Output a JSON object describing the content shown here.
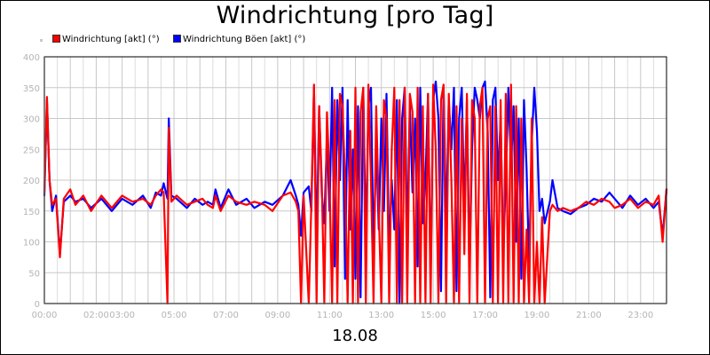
{
  "chart_data": {
    "type": "line",
    "title": "Windrichtung [pro Tag]",
    "xlabel": "18.08",
    "ylabel": "",
    "ylim": [
      0,
      400
    ],
    "yticks": [
      0,
      50,
      100,
      150,
      200,
      250,
      300,
      350,
      400
    ],
    "xlim_hours": [
      0,
      24
    ],
    "xticks": [
      {
        "h": 0,
        "label": "00:00"
      },
      {
        "h": 2,
        "label": "02:00"
      },
      {
        "h": 3,
        "label": "03:00"
      },
      {
        "h": 5,
        "label": "05:00"
      },
      {
        "h": 7,
        "label": "07:00"
      },
      {
        "h": 9,
        "label": "09:00"
      },
      {
        "h": 11,
        "label": "11:00"
      },
      {
        "h": 13,
        "label": "13:00"
      },
      {
        "h": 15,
        "label": "15:00"
      },
      {
        "h": 17,
        "label": "17:00"
      },
      {
        "h": 19,
        "label": "19:00"
      },
      {
        "h": 21,
        "label": "21:00"
      },
      {
        "h": 23,
        "label": "23:00"
      }
    ],
    "grid": true,
    "legend_position": "top-left",
    "series": [
      {
        "name": "Windrichtung Böen [akt] (°)",
        "color": "#0000ff",
        "points": [
          [
            0,
            175
          ],
          [
            0.1,
            330
          ],
          [
            0.2,
            200
          ],
          [
            0.3,
            150
          ],
          [
            0.45,
            175
          ],
          [
            0.6,
            80
          ],
          [
            0.75,
            165
          ],
          [
            1,
            175
          ],
          [
            1.2,
            165
          ],
          [
            1.5,
            170
          ],
          [
            1.8,
            155
          ],
          [
            2.2,
            170
          ],
          [
            2.6,
            150
          ],
          [
            3.0,
            170
          ],
          [
            3.4,
            160
          ],
          [
            3.8,
            175
          ],
          [
            4.1,
            155
          ],
          [
            4.3,
            180
          ],
          [
            4.5,
            175
          ],
          [
            4.6,
            195
          ],
          [
            4.75,
            170
          ],
          [
            4.8,
            300
          ],
          [
            4.9,
            175
          ],
          [
            5.1,
            170
          ],
          [
            5.5,
            155
          ],
          [
            5.8,
            170
          ],
          [
            6.1,
            160
          ],
          [
            6.3,
            165
          ],
          [
            6.5,
            160
          ],
          [
            6.6,
            185
          ],
          [
            6.8,
            155
          ],
          [
            7.1,
            185
          ],
          [
            7.4,
            160
          ],
          [
            7.8,
            170
          ],
          [
            8.1,
            155
          ],
          [
            8.5,
            165
          ],
          [
            8.8,
            160
          ],
          [
            9.2,
            175
          ],
          [
            9.5,
            200
          ],
          [
            9.7,
            175
          ],
          [
            9.8,
            160
          ],
          [
            9.9,
            110
          ],
          [
            10.0,
            180
          ],
          [
            10.2,
            190
          ],
          [
            10.3,
            150
          ],
          [
            10.4,
            350
          ],
          [
            10.5,
            85
          ],
          [
            10.6,
            320
          ],
          [
            10.7,
            180
          ],
          [
            10.8,
            130
          ],
          [
            10.9,
            270
          ],
          [
            11.0,
            150
          ],
          [
            11.1,
            350
          ],
          [
            11.2,
            60
          ],
          [
            11.3,
            330
          ],
          [
            11.4,
            200
          ],
          [
            11.5,
            350
          ],
          [
            11.6,
            40
          ],
          [
            11.7,
            330
          ],
          [
            11.8,
            120
          ],
          [
            11.9,
            250
          ],
          [
            12.0,
            40
          ],
          [
            12.1,
            320
          ],
          [
            12.2,
            10
          ],
          [
            12.3,
            350
          ],
          [
            12.4,
            100
          ],
          [
            12.5,
            320
          ],
          [
            12.6,
            350
          ],
          [
            12.7,
            80
          ],
          [
            12.8,
            260
          ],
          [
            12.9,
            120
          ],
          [
            13.0,
            300
          ],
          [
            13.1,
            150
          ],
          [
            13.2,
            340
          ],
          [
            13.3,
            80
          ],
          [
            13.4,
            200
          ],
          [
            13.5,
            120
          ],
          [
            13.6,
            330
          ],
          [
            13.7,
            0
          ],
          [
            13.8,
            300
          ],
          [
            13.9,
            350
          ],
          [
            14.0,
            100
          ],
          [
            14.1,
            320
          ],
          [
            14.2,
            180
          ],
          [
            14.3,
            300
          ],
          [
            14.4,
            60
          ],
          [
            14.5,
            350
          ],
          [
            14.6,
            130
          ],
          [
            14.7,
            200
          ],
          [
            14.8,
            340
          ],
          [
            14.9,
            40
          ],
          [
            15.0,
            330
          ],
          [
            15.1,
            360
          ],
          [
            15.2,
            300
          ],
          [
            15.3,
            20
          ],
          [
            15.4,
            350
          ],
          [
            15.5,
            120
          ],
          [
            15.6,
            330
          ],
          [
            15.7,
            250
          ],
          [
            15.8,
            350
          ],
          [
            15.9,
            20
          ],
          [
            16.0,
            300
          ],
          [
            16.1,
            350
          ],
          [
            16.2,
            150
          ],
          [
            16.3,
            330
          ],
          [
            16.4,
            60
          ],
          [
            16.5,
            250
          ],
          [
            16.6,
            350
          ],
          [
            16.7,
            330
          ],
          [
            16.8,
            300
          ],
          [
            16.9,
            350
          ],
          [
            17.0,
            360
          ],
          [
            17.1,
            280
          ],
          [
            17.2,
            10
          ],
          [
            17.3,
            330
          ],
          [
            17.4,
            350
          ],
          [
            17.5,
            200
          ],
          [
            17.6,
            300
          ],
          [
            17.7,
            80
          ],
          [
            17.8,
            200
          ],
          [
            17.9,
            350
          ],
          [
            18.0,
            220
          ],
          [
            18.1,
            320
          ],
          [
            18.2,
            100
          ],
          [
            18.3,
            300
          ],
          [
            18.4,
            40
          ],
          [
            18.5,
            330
          ],
          [
            18.6,
            220
          ],
          [
            18.7,
            60
          ],
          [
            18.8,
            260
          ],
          [
            18.9,
            350
          ],
          [
            19.0,
            280
          ],
          [
            19.1,
            150
          ],
          [
            19.2,
            170
          ],
          [
            19.3,
            130
          ],
          [
            19.5,
            165
          ],
          [
            19.6,
            200
          ],
          [
            19.8,
            155
          ],
          [
            20.0,
            150
          ],
          [
            20.3,
            145
          ],
          [
            20.6,
            155
          ],
          [
            20.9,
            160
          ],
          [
            21.2,
            170
          ],
          [
            21.5,
            165
          ],
          [
            21.8,
            180
          ],
          [
            22.0,
            170
          ],
          [
            22.3,
            155
          ],
          [
            22.6,
            175
          ],
          [
            22.9,
            160
          ],
          [
            23.2,
            170
          ],
          [
            23.5,
            155
          ],
          [
            23.7,
            165
          ],
          [
            23.85,
            110
          ],
          [
            24.0,
            185
          ]
        ]
      },
      {
        "name": "Windrichtung [akt] (°)",
        "color": "#ff0000",
        "points": [
          [
            0,
            180
          ],
          [
            0.1,
            335
          ],
          [
            0.2,
            200
          ],
          [
            0.3,
            160
          ],
          [
            0.45,
            170
          ],
          [
            0.6,
            75
          ],
          [
            0.75,
            170
          ],
          [
            1,
            185
          ],
          [
            1.2,
            160
          ],
          [
            1.5,
            175
          ],
          [
            1.8,
            150
          ],
          [
            2.2,
            175
          ],
          [
            2.6,
            155
          ],
          [
            3.0,
            175
          ],
          [
            3.4,
            165
          ],
          [
            3.8,
            170
          ],
          [
            4.1,
            160
          ],
          [
            4.3,
            175
          ],
          [
            4.5,
            185
          ],
          [
            4.6,
            180
          ],
          [
            4.75,
            0
          ],
          [
            4.8,
            285
          ],
          [
            4.9,
            165
          ],
          [
            5.1,
            175
          ],
          [
            5.5,
            160
          ],
          [
            5.8,
            165
          ],
          [
            6.1,
            170
          ],
          [
            6.3,
            160
          ],
          [
            6.5,
            155
          ],
          [
            6.6,
            175
          ],
          [
            6.8,
            150
          ],
          [
            7.1,
            175
          ],
          [
            7.4,
            165
          ],
          [
            7.8,
            160
          ],
          [
            8.1,
            165
          ],
          [
            8.5,
            160
          ],
          [
            8.8,
            150
          ],
          [
            9.2,
            175
          ],
          [
            9.5,
            180
          ],
          [
            9.7,
            165
          ],
          [
            9.8,
            150
          ],
          [
            9.9,
            0
          ],
          [
            10.0,
            175
          ],
          [
            10.2,
            0
          ],
          [
            10.3,
            160
          ],
          [
            10.4,
            355
          ],
          [
            10.5,
            0
          ],
          [
            10.6,
            320
          ],
          [
            10.7,
            200
          ],
          [
            10.8,
            0
          ],
          [
            10.9,
            310
          ],
          [
            11.0,
            200
          ],
          [
            11.1,
            0
          ],
          [
            11.2,
            330
          ],
          [
            11.3,
            0
          ],
          [
            11.4,
            340
          ],
          [
            11.5,
            320
          ],
          [
            11.6,
            200
          ],
          [
            11.7,
            0
          ],
          [
            11.8,
            280
          ],
          [
            11.9,
            0
          ],
          [
            12.0,
            350
          ],
          [
            12.1,
            0
          ],
          [
            12.2,
            310
          ],
          [
            12.3,
            350
          ],
          [
            12.4,
            0
          ],
          [
            12.5,
            355
          ],
          [
            12.6,
            200
          ],
          [
            12.7,
            0
          ],
          [
            12.8,
            320
          ],
          [
            12.9,
            150
          ],
          [
            13.0,
            0
          ],
          [
            13.1,
            330
          ],
          [
            13.2,
            300
          ],
          [
            13.3,
            0
          ],
          [
            13.4,
            250
          ],
          [
            13.5,
            350
          ],
          [
            13.6,
            0
          ],
          [
            13.7,
            330
          ],
          [
            13.8,
            0
          ],
          [
            13.9,
            350
          ],
          [
            14.0,
            0
          ],
          [
            14.1,
            340
          ],
          [
            14.2,
            310
          ],
          [
            14.3,
            0
          ],
          [
            14.4,
            350
          ],
          [
            14.5,
            0
          ],
          [
            14.6,
            320
          ],
          [
            14.7,
            0
          ],
          [
            14.8,
            340
          ],
          [
            14.9,
            0
          ],
          [
            15.0,
            355
          ],
          [
            15.1,
            250
          ],
          [
            15.2,
            0
          ],
          [
            15.3,
            330
          ],
          [
            15.4,
            355
          ],
          [
            15.5,
            0
          ],
          [
            15.6,
            340
          ],
          [
            15.7,
            200
          ],
          [
            15.8,
            0
          ],
          [
            15.9,
            320
          ],
          [
            16.0,
            0
          ],
          [
            16.1,
            300
          ],
          [
            16.2,
            80
          ],
          [
            16.3,
            340
          ],
          [
            16.4,
            0
          ],
          [
            16.5,
            330
          ],
          [
            16.6,
            300
          ],
          [
            16.7,
            0
          ],
          [
            16.8,
            320
          ],
          [
            16.9,
            350
          ],
          [
            17.0,
            0
          ],
          [
            17.1,
            300
          ],
          [
            17.2,
            320
          ],
          [
            17.3,
            0
          ],
          [
            17.4,
            320
          ],
          [
            17.5,
            0
          ],
          [
            17.6,
            330
          ],
          [
            17.7,
            0
          ],
          [
            17.8,
            340
          ],
          [
            17.9,
            0
          ],
          [
            18.0,
            355
          ],
          [
            18.1,
            0
          ],
          [
            18.2,
            320
          ],
          [
            18.3,
            0
          ],
          [
            18.4,
            300
          ],
          [
            18.5,
            0
          ],
          [
            18.6,
            120
          ],
          [
            18.7,
            0
          ],
          [
            18.8,
            300
          ],
          [
            18.9,
            0
          ],
          [
            19.0,
            100
          ],
          [
            19.1,
            0
          ],
          [
            19.2,
            140
          ],
          [
            19.3,
            0
          ],
          [
            19.5,
            150
          ],
          [
            19.6,
            160
          ],
          [
            19.8,
            150
          ],
          [
            20.0,
            155
          ],
          [
            20.3,
            150
          ],
          [
            20.6,
            155
          ],
          [
            20.9,
            165
          ],
          [
            21.2,
            160
          ],
          [
            21.5,
            170
          ],
          [
            21.8,
            165
          ],
          [
            22.0,
            155
          ],
          [
            22.3,
            160
          ],
          [
            22.6,
            170
          ],
          [
            22.9,
            155
          ],
          [
            23.2,
            165
          ],
          [
            23.5,
            160
          ],
          [
            23.7,
            175
          ],
          [
            23.85,
            100
          ],
          [
            24.0,
            185
          ]
        ]
      }
    ],
    "legend": [
      {
        "label": "Windrichtung [akt] (°)",
        "color": "#ff0000"
      },
      {
        "label": "Windrichtung Böen [akt] (°)",
        "color": "#0000ff"
      }
    ]
  }
}
